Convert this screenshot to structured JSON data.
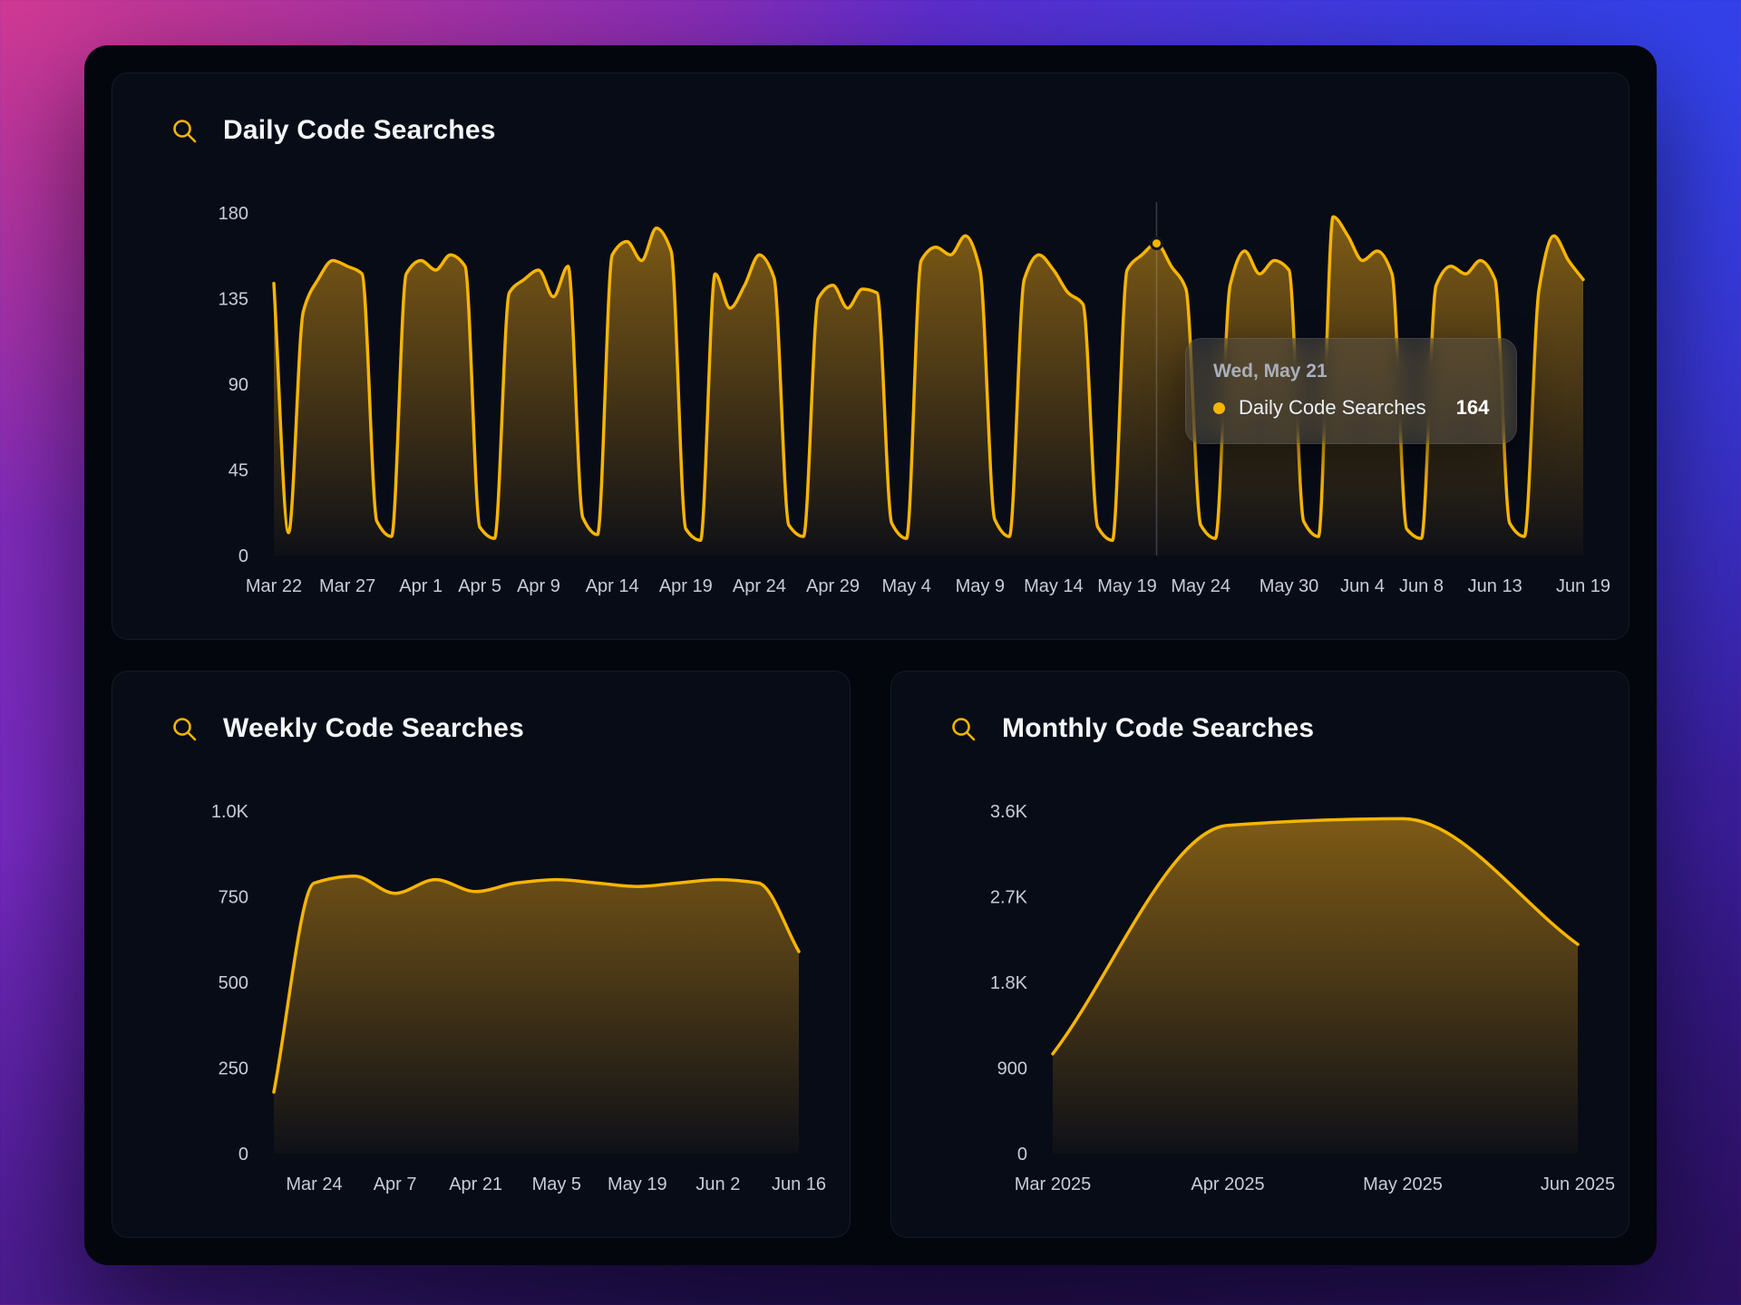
{
  "accent_color": "#f7b500",
  "cards": {
    "daily_title": "Daily Code Searches",
    "weekly_title": "Weekly Code Searches",
    "monthly_title": "Monthly Code Searches"
  },
  "tooltip": {
    "date": "Wed, May 21",
    "series_label": "Daily Code Searches",
    "value": "164"
  },
  "chart_data": [
    {
      "id": "daily",
      "type": "area",
      "title": "Daily Code Searches",
      "line_color": "#f7b500",
      "ylim": [
        0,
        180
      ],
      "yticks": {
        "values": [
          0,
          45,
          90,
          135,
          180
        ],
        "labels": [
          "0",
          "45",
          "90",
          "135",
          "180"
        ]
      },
      "x": [
        "Mar 22",
        "Mar 23",
        "Mar 24",
        "Mar 25",
        "Mar 26",
        "Mar 27",
        "Mar 28",
        "Mar 29",
        "Mar 30",
        "Mar 31",
        "Apr 1",
        "Apr 2",
        "Apr 3",
        "Apr 4",
        "Apr 5",
        "Apr 6",
        "Apr 7",
        "Apr 8",
        "Apr 9",
        "Apr 10",
        "Apr 11",
        "Apr 12",
        "Apr 13",
        "Apr 14",
        "Apr 15",
        "Apr 16",
        "Apr 17",
        "Apr 18",
        "Apr 19",
        "Apr 20",
        "Apr 21",
        "Apr 22",
        "Apr 23",
        "Apr 24",
        "Apr 25",
        "Apr 26",
        "Apr 27",
        "Apr 28",
        "Apr 29",
        "Apr 30",
        "May 1",
        "May 2",
        "May 3",
        "May 4",
        "May 5",
        "May 6",
        "May 7",
        "May 8",
        "May 9",
        "May 10",
        "May 11",
        "May 12",
        "May 13",
        "May 14",
        "May 15",
        "May 16",
        "May 17",
        "May 18",
        "May 19",
        "May 20",
        "May 21",
        "May 22",
        "May 23",
        "May 24",
        "May 25",
        "May 26",
        "May 27",
        "May 28",
        "May 29",
        "May 30",
        "May 31",
        "Jun 1",
        "Jun 2",
        "Jun 3",
        "Jun 4",
        "Jun 5",
        "Jun 6",
        "Jun 7",
        "Jun 8",
        "Jun 9",
        "Jun 10",
        "Jun 11",
        "Jun 12",
        "Jun 13",
        "Jun 14",
        "Jun 15",
        "Jun 16",
        "Jun 17",
        "Jun 18",
        "Jun 19"
      ],
      "values": [
        143,
        12,
        128,
        145,
        155,
        152,
        148,
        18,
        10,
        148,
        155,
        150,
        158,
        152,
        15,
        9,
        138,
        145,
        150,
        136,
        152,
        20,
        11,
        158,
        165,
        155,
        172,
        160,
        14,
        8,
        148,
        130,
        142,
        158,
        146,
        16,
        10,
        135,
        142,
        130,
        140,
        138,
        17,
        9,
        155,
        162,
        158,
        168,
        150,
        19,
        10,
        145,
        158,
        150,
        138,
        132,
        15,
        8,
        150,
        158,
        164,
        152,
        140,
        16,
        9,
        142,
        160,
        148,
        155,
        150,
        18,
        10,
        178,
        168,
        155,
        160,
        148,
        14,
        9,
        142,
        152,
        148,
        155,
        145,
        17,
        10,
        140,
        168,
        155,
        145
      ],
      "xticks": {
        "indices": [
          0,
          5,
          10,
          14,
          18,
          23,
          28,
          33,
          38,
          43,
          48,
          53,
          58,
          63,
          69,
          74,
          78,
          83,
          89
        ],
        "labels": [
          "Mar 22",
          "Mar 27",
          "Apr 1",
          "Apr 5",
          "Apr 9",
          "Apr 14",
          "Apr 19",
          "Apr 24",
          "Apr 29",
          "May 4",
          "May 9",
          "May 14",
          "May 19",
          "May 24",
          "May 30",
          "Jun 4",
          "Jun 8",
          "Jun 13",
          "Jun 19"
        ]
      },
      "highlight": {
        "index": 60,
        "label": "Wed, May 21",
        "value": 164
      }
    },
    {
      "id": "weekly",
      "type": "area",
      "title": "Weekly Code Searches",
      "line_color": "#f7b500",
      "ylim": [
        0,
        1000
      ],
      "yticks": {
        "values": [
          0,
          250,
          500,
          750,
          1000
        ],
        "labels": [
          "0",
          "250",
          "500",
          "750",
          "1.0K"
        ]
      },
      "x": [
        "Mar 17",
        "Mar 24",
        "Mar 31",
        "Apr 7",
        "Apr 14",
        "Apr 21",
        "Apr 28",
        "May 5",
        "May 12",
        "May 19",
        "May 26",
        "Jun 2",
        "Jun 9",
        "Jun 16"
      ],
      "values": [
        180,
        790,
        810,
        760,
        800,
        765,
        790,
        800,
        790,
        780,
        790,
        800,
        790,
        590
      ],
      "xticks": {
        "indices": [
          1,
          3,
          5,
          7,
          9,
          11,
          13
        ],
        "labels": [
          "Mar 24",
          "Apr 7",
          "Apr 21",
          "May 5",
          "May 19",
          "Jun 2",
          "Jun 16"
        ]
      }
    },
    {
      "id": "monthly",
      "type": "area",
      "title": "Monthly Code Searches",
      "line_color": "#f7b500",
      "ylim": [
        0,
        3600
      ],
      "yticks": {
        "values": [
          0,
          900,
          1800,
          2700,
          3600
        ],
        "labels": [
          "0",
          "900",
          "1.8K",
          "2.7K",
          "3.6K"
        ]
      },
      "x": [
        "Mar 2025",
        "Apr 2025",
        "May 2025",
        "Jun 2025"
      ],
      "values": [
        1050,
        3450,
        3520,
        2200
      ],
      "xticks": {
        "indices": [
          0,
          1,
          2,
          3
        ],
        "labels": [
          "Mar 2025",
          "Apr 2025",
          "May 2025",
          "Jun 2025"
        ]
      }
    }
  ]
}
